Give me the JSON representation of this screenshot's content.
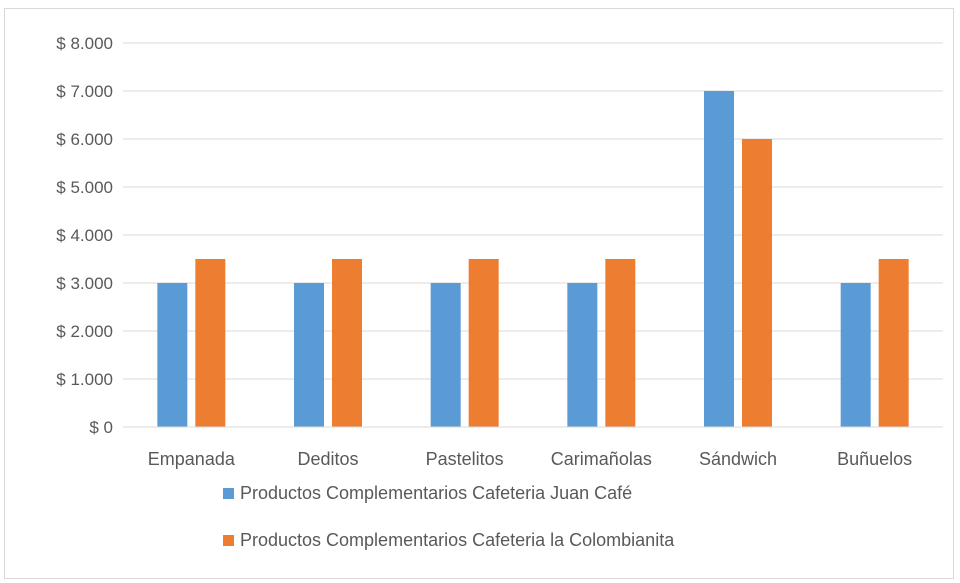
{
  "chart_data": {
    "type": "bar",
    "title": "",
    "xlabel": "",
    "ylabel": "",
    "categories": [
      "Empanada",
      "Deditos",
      "Pastelitos",
      "Carimañolas",
      "Sándwich",
      "Buñuelos"
    ],
    "series": [
      {
        "name": "Productos Complementarios Cafeteria Juan Café",
        "color": "#5b9bd5",
        "values": [
          3000,
          3000,
          3000,
          3000,
          7000,
          3000
        ]
      },
      {
        "name": "Productos Complementarios Cafeteria la Colombianita",
        "color": "#ed7d31",
        "values": [
          3500,
          3500,
          3500,
          3500,
          6000,
          3500
        ]
      }
    ],
    "ylim": [
      0,
      8000
    ],
    "yticks": [
      0,
      1000,
      2000,
      3000,
      4000,
      5000,
      6000,
      7000,
      8000
    ],
    "ytick_labels": [
      "$ 0",
      "$ 1.000",
      "$ 2.000",
      "$ 3.000",
      "$ 4.000",
      "$ 5.000",
      "$ 6.000",
      "$ 7.000",
      "$ 8.000"
    ],
    "grid": true,
    "legend_position": "bottom"
  }
}
